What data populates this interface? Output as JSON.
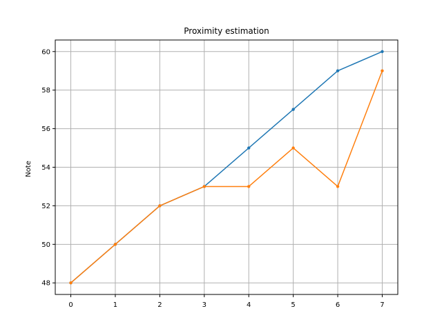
{
  "chart_data": {
    "type": "line",
    "title": "Proximity estimation",
    "xlabel": "",
    "ylabel": "Note",
    "x": [
      0,
      1,
      2,
      3,
      4,
      5,
      6,
      7
    ],
    "xlim": [
      -0.35,
      7.35
    ],
    "ylim": [
      47.4,
      60.6
    ],
    "xticks": [
      0,
      1,
      2,
      3,
      4,
      5,
      6,
      7
    ],
    "yticks": [
      48,
      50,
      52,
      54,
      56,
      58,
      60
    ],
    "grid": true,
    "marker": "dot",
    "series": [
      {
        "values": [
          48,
          50,
          52,
          53,
          55,
          57,
          59,
          60
        ],
        "color": "#1f77b4"
      },
      {
        "values": [
          48,
          50,
          52,
          53,
          53,
          55,
          53,
          59
        ],
        "color": "#ff7f0e"
      }
    ]
  }
}
